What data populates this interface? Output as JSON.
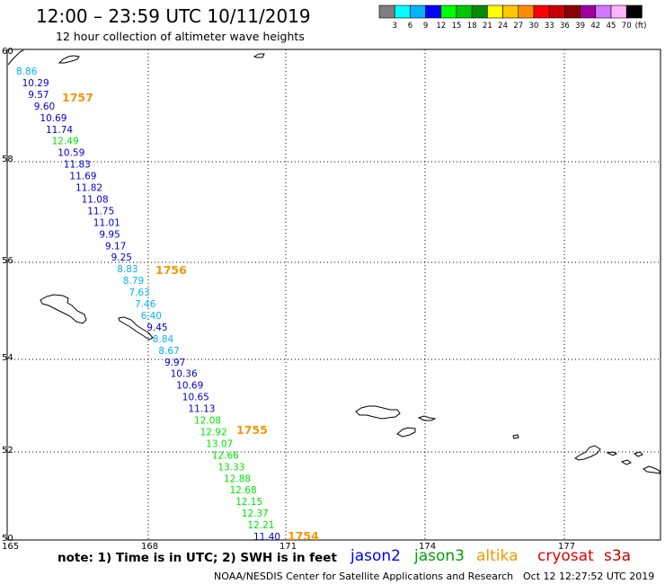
{
  "title": "12:00 – 23:59 UTC 10/11/2019",
  "subtitle": "12 hour collection of altimeter wave heights",
  "color_scale": {
    "labels": [
      "3",
      "6",
      "9",
      "12",
      "15",
      "18",
      "21",
      "24",
      "27",
      "30",
      "33",
      "36",
      "39",
      "42",
      "45",
      "70"
    ],
    "unit": "(ft)",
    "colors": [
      "#7f7f7f",
      "#00ffff",
      "#00b4ff",
      "#0000ff",
      "#00ff00",
      "#00c800",
      "#008c00",
      "#ffff00",
      "#ffc800",
      "#ff8c00",
      "#ff0000",
      "#c80000",
      "#8c0000",
      "#a000a0",
      "#d278ff",
      "#ffb4ff",
      "#000000"
    ]
  },
  "axes": {
    "lat_labels": [
      "60",
      "58",
      "56",
      "54",
      "52",
      "50"
    ],
    "lon_labels": [
      "165",
      "168",
      "171",
      "174",
      "177"
    ]
  },
  "track_colors": {
    "light_blue": "#00b4ff",
    "dark_blue": "#0000c8",
    "green": "#00e600"
  },
  "wave_heights": [
    {
      "value": "8.86",
      "color": "light_blue"
    },
    {
      "value": "10.29",
      "color": "dark_blue"
    },
    {
      "value": "9.57",
      "color": "dark_blue"
    },
    {
      "value": "9.60",
      "color": "dark_blue"
    },
    {
      "value": "10.69",
      "color": "dark_blue"
    },
    {
      "value": "11.74",
      "color": "dark_blue"
    },
    {
      "value": "12.49",
      "color": "green"
    },
    {
      "value": "10.59",
      "color": "dark_blue"
    },
    {
      "value": "11.83",
      "color": "dark_blue"
    },
    {
      "value": "11.69",
      "color": "dark_blue"
    },
    {
      "value": "11.82",
      "color": "dark_blue"
    },
    {
      "value": "11.08",
      "color": "dark_blue"
    },
    {
      "value": "11.75",
      "color": "dark_blue"
    },
    {
      "value": "11.01",
      "color": "dark_blue"
    },
    {
      "value": "9.95",
      "color": "dark_blue"
    },
    {
      "value": "9.17",
      "color": "dark_blue"
    },
    {
      "value": "9.25",
      "color": "dark_blue"
    },
    {
      "value": "8.83",
      "color": "light_blue"
    },
    {
      "value": "8.79",
      "color": "light_blue"
    },
    {
      "value": "7.63",
      "color": "light_blue"
    },
    {
      "value": "7.46",
      "color": "light_blue"
    },
    {
      "value": "6.40",
      "color": "light_blue"
    },
    {
      "value": "9.45",
      "color": "dark_blue"
    },
    {
      "value": "8.84",
      "color": "light_blue"
    },
    {
      "value": "8.67",
      "color": "light_blue"
    },
    {
      "value": "9.97",
      "color": "dark_blue"
    },
    {
      "value": "10.36",
      "color": "dark_blue"
    },
    {
      "value": "10.69",
      "color": "dark_blue"
    },
    {
      "value": "10.65",
      "color": "dark_blue"
    },
    {
      "value": "11.13",
      "color": "dark_blue"
    },
    {
      "value": "12.08",
      "color": "green"
    },
    {
      "value": "12.92",
      "color": "green"
    },
    {
      "value": "13.07",
      "color": "green"
    },
    {
      "value": "12.66",
      "color": "green"
    },
    {
      "value": "13.33",
      "color": "green"
    },
    {
      "value": "12.88",
      "color": "green"
    },
    {
      "value": "12.68",
      "color": "green"
    },
    {
      "value": "12.15",
      "color": "green"
    },
    {
      "value": "12.37",
      "color": "green"
    },
    {
      "value": "12.21",
      "color": "green"
    },
    {
      "value": "11.40",
      "color": "dark_blue"
    }
  ],
  "time_labels": [
    "1757",
    "1756",
    "1755",
    "1754"
  ],
  "note": "note:  1) Time is in UTC;  2) SWH is in feet",
  "satellites": [
    {
      "name": "jason2",
      "color": "#0000ff"
    },
    {
      "name": "jason3",
      "color": "#00a000"
    },
    {
      "name": "altika",
      "color": "#f59600"
    },
    {
      "name": "cryosat",
      "color": "#e60000"
    },
    {
      "name": "s3a",
      "color": "#c80000"
    }
  ],
  "credit": "NOAA/NESDIS Center for Satellite Applications and Research",
  "timestamp": "Oct 12 12:27:52 UTC 2019"
}
